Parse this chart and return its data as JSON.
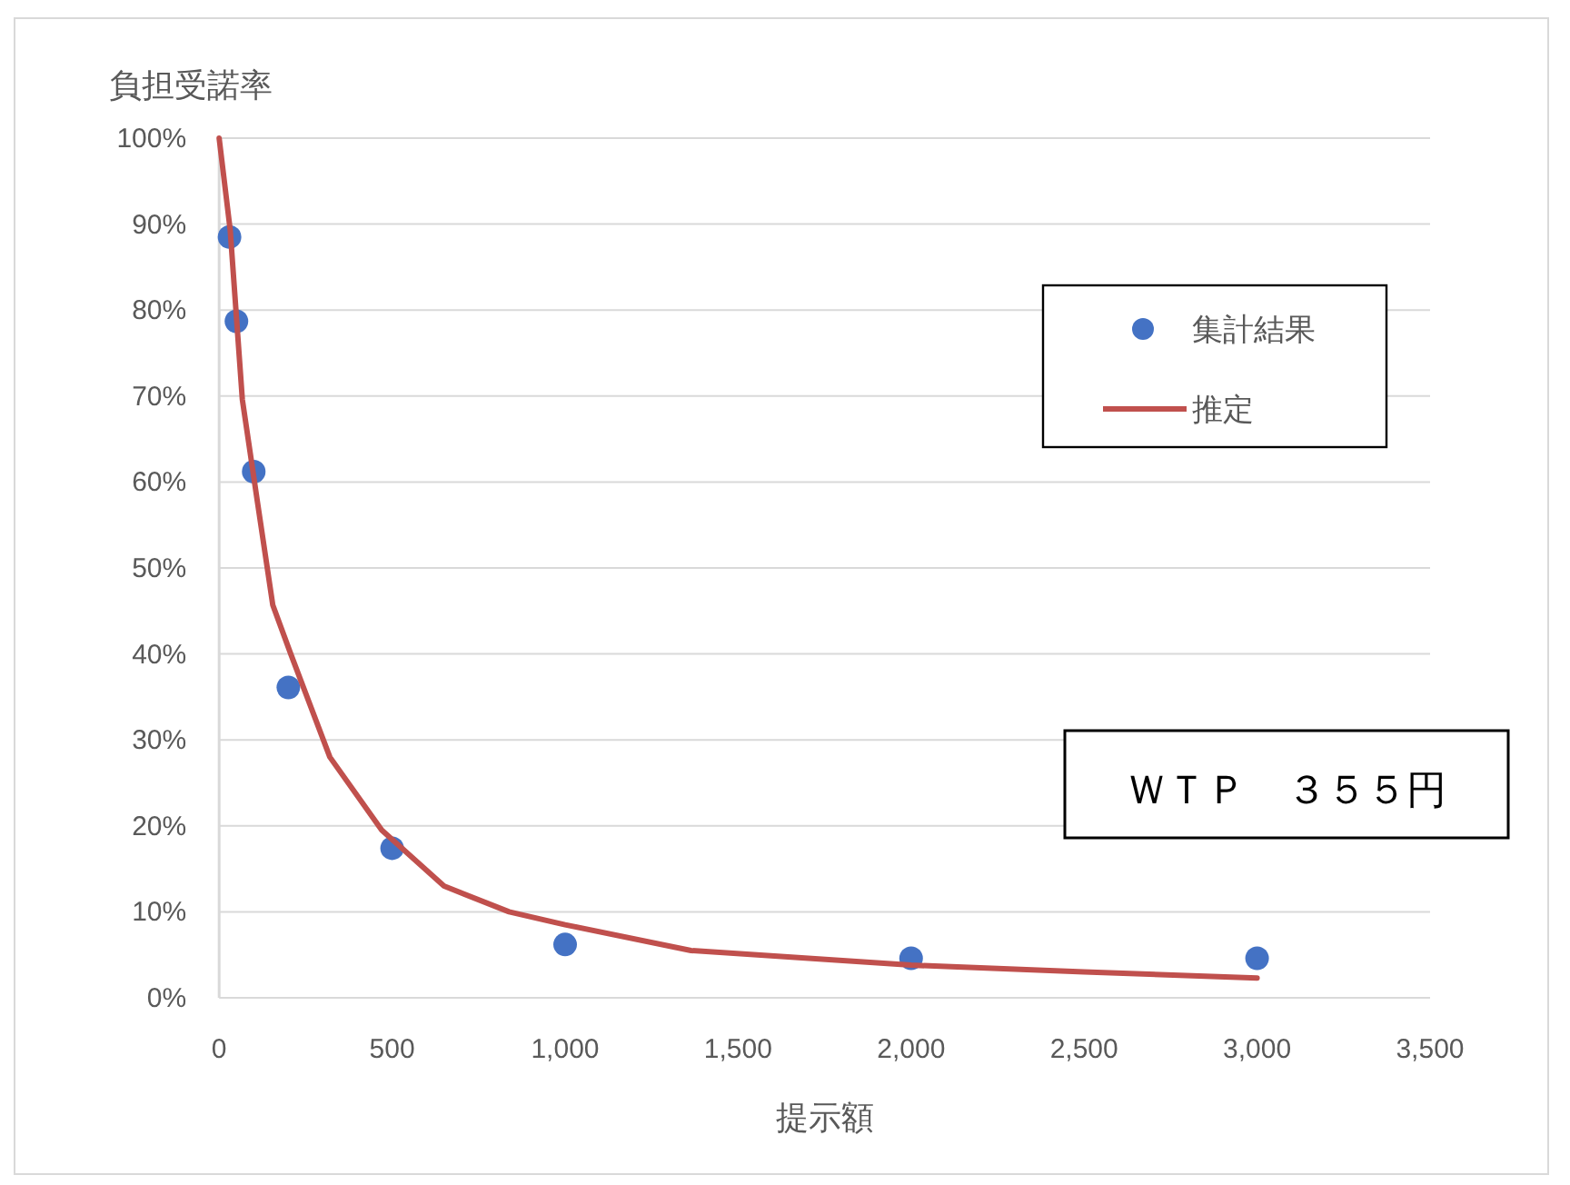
{
  "chart_data": {
    "type": "scatter",
    "ylabel": "負担受諾率",
    "xlabel": "提示額",
    "series": [
      {
        "name": "集計結果",
        "color": "#4472c4",
        "marker": "circle",
        "x": [
          30,
          50,
          100,
          200,
          500,
          1000,
          2000,
          3000
        ],
        "values": [
          88.5,
          78.7,
          61.2,
          36.1,
          17.4,
          6.2,
          4.6,
          4.6
        ]
      },
      {
        "name": "推定",
        "type": "line",
        "color": "#c0504d",
        "line_style": "solid",
        "x": [
          0,
          32,
          67,
          111,
          155,
          207,
          320,
          470,
          650,
          838,
          1000,
          1364,
          2000,
          2500,
          3000
        ],
        "values": [
          100,
          89.3,
          69.6,
          57.6,
          45.7,
          40,
          28,
          19.5,
          13,
          10,
          8.5,
          5.5,
          3.8,
          3,
          2.3
        ]
      }
    ],
    "xlim": [
      0,
      3500
    ],
    "xticks": [
      0,
      500,
      {
        "value": 1000,
        "label": "1,000"
      },
      {
        "value": 1500,
        "label": "1,500"
      },
      {
        "value": 2000,
        "label": "2,000"
      },
      {
        "value": 2500,
        "label": "2,500"
      },
      {
        "value": 3000,
        "label": "3,000"
      },
      {
        "value": 3500,
        "label": "3,500"
      }
    ],
    "ylim": [
      0,
      100
    ],
    "yticks": [
      {
        "value": 0,
        "label": "0%"
      },
      {
        "value": 10,
        "label": "10%"
      },
      {
        "value": 20,
        "label": "20%"
      },
      {
        "value": 30,
        "label": "30%"
      },
      {
        "value": 40,
        "label": "40%"
      },
      {
        "value": 50,
        "label": "50%"
      },
      {
        "value": 60,
        "label": "60%"
      },
      {
        "value": 70,
        "label": "70%"
      },
      {
        "value": 80,
        "label": "80%"
      },
      {
        "value": 90,
        "label": "90%"
      },
      {
        "value": 100,
        "label": "100%"
      }
    ],
    "grid": "y",
    "legend": "top right",
    "annotations": [
      "ＷＴＰ　３５５円"
    ]
  }
}
